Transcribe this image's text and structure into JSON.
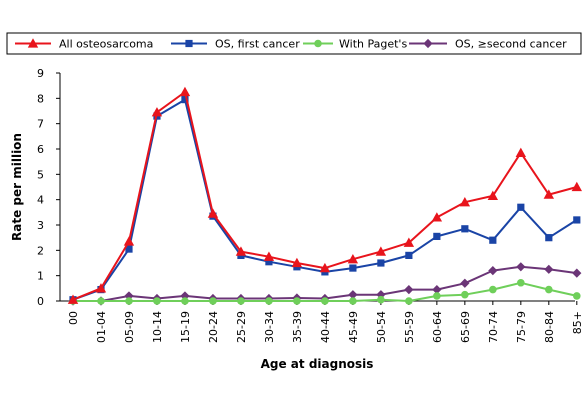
{
  "chart_data": {
    "type": "line",
    "xlabel": "Age at diagnosis",
    "ylabel": "Rate per million",
    "ylim": [
      0,
      9
    ],
    "yticks": [
      0,
      1,
      2,
      3,
      4,
      5,
      6,
      7,
      8,
      9
    ],
    "grid": false,
    "legend_position": "top",
    "categories": [
      "00",
      "01-04",
      "05-09",
      "10-14",
      "15-19",
      "20-24",
      "25-29",
      "30-34",
      "35-39",
      "40-44",
      "45-49",
      "50-54",
      "55-59",
      "60-64",
      "65-69",
      "70-74",
      "75-79",
      "80-84",
      "85+"
    ],
    "series": [
      {
        "name": "All osteosarcoma",
        "color": "#e8141c",
        "marker": "triangle",
        "values": [
          0.05,
          0.5,
          2.35,
          7.45,
          8.25,
          3.45,
          1.95,
          1.75,
          1.5,
          1.3,
          1.65,
          1.95,
          2.3,
          3.3,
          3.9,
          4.15,
          5.85,
          4.2,
          4.5
        ]
      },
      {
        "name": "OS, first cancer",
        "color": "#1a44a6",
        "marker": "square",
        "values": [
          0.05,
          0.45,
          2.05,
          7.3,
          7.95,
          3.35,
          1.8,
          1.55,
          1.35,
          1.15,
          1.3,
          1.5,
          1.8,
          2.55,
          2.85,
          2.4,
          3.7,
          2.5,
          3.2
        ]
      },
      {
        "name": "With Paget's",
        "color": "#6fcf5a",
        "marker": "circle",
        "values": [
          0.0,
          0.0,
          0.0,
          0.0,
          0.0,
          0.0,
          0.0,
          0.0,
          0.0,
          0.0,
          0.0,
          0.05,
          0.0,
          0.2,
          0.25,
          0.45,
          0.72,
          0.45,
          0.2
        ]
      },
      {
        "name": "OS, ≥second cancer",
        "color": "#6b3577",
        "marker": "diamond",
        "values": [
          0.0,
          0.0,
          0.2,
          0.1,
          0.2,
          0.1,
          0.1,
          0.1,
          0.12,
          0.1,
          0.25,
          0.25,
          0.45,
          0.45,
          0.7,
          1.2,
          1.35,
          1.25,
          1.1
        ]
      }
    ]
  }
}
